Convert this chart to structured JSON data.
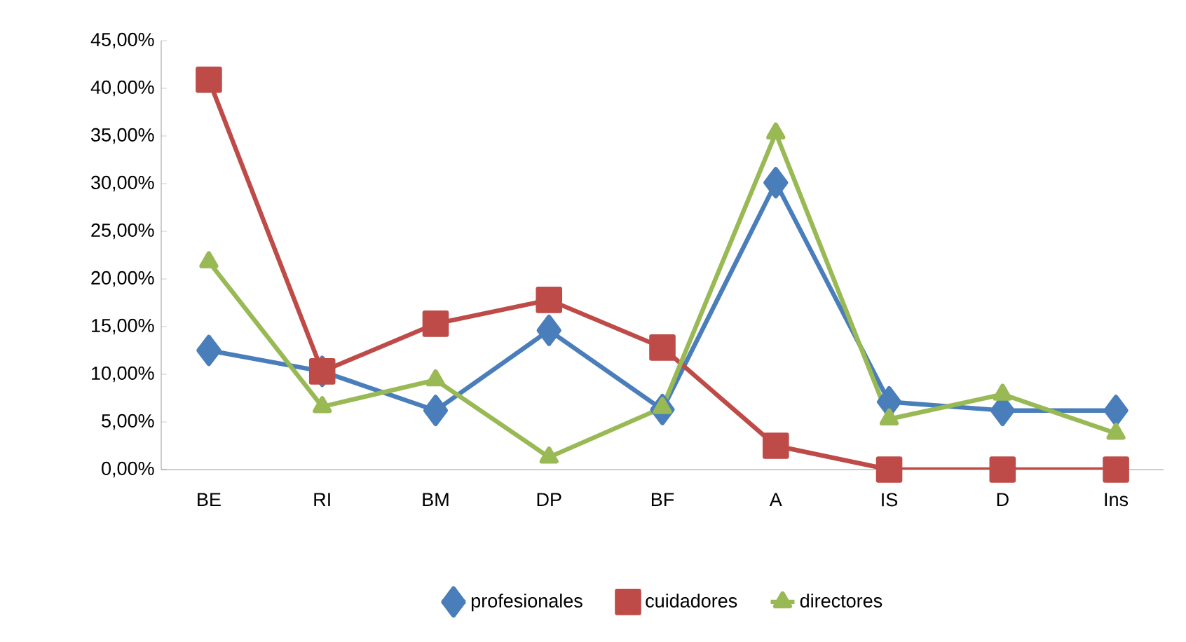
{
  "chart_data": {
    "type": "line",
    "categories": [
      "BE",
      "RI",
      "BM",
      "DP",
      "BF",
      "A",
      "IS",
      "D",
      "Ins"
    ],
    "series": [
      {
        "name": "profesionales",
        "color": "#4a7ebb",
        "marker": "diamond",
        "values": [
          12.5,
          10.3,
          6.2,
          14.6,
          6.3,
          30.1,
          7.1,
          6.2,
          6.2
        ]
      },
      {
        "name": "cuidadores",
        "color": "#be4b48",
        "marker": "square",
        "values": [
          40.9,
          10.3,
          15.3,
          17.8,
          12.8,
          2.5,
          0,
          0,
          0
        ]
      },
      {
        "name": "directores",
        "color": "#98b954",
        "marker": "triangle",
        "values": [
          21.8,
          6.6,
          9.4,
          1.3,
          6.5,
          35.3,
          5.3,
          7.9,
          3.8
        ]
      }
    ],
    "ylim": [
      0,
      45
    ],
    "yticks": [
      {
        "value": 0,
        "label": "0,00%"
      },
      {
        "value": 5,
        "label": "5,00%"
      },
      {
        "value": 10,
        "label": "10,00%"
      },
      {
        "value": 15,
        "label": "15,00%"
      },
      {
        "value": 20,
        "label": "20,00%"
      },
      {
        "value": 25,
        "label": "25,00%"
      },
      {
        "value": 30,
        "label": "30,00%"
      },
      {
        "value": 35,
        "label": "35,00%"
      },
      {
        "value": 40,
        "label": "40,00%"
      },
      {
        "value": 45,
        "label": "45,00%"
      }
    ],
    "grid": false,
    "legend": "bottom",
    "line_style": "solid"
  }
}
